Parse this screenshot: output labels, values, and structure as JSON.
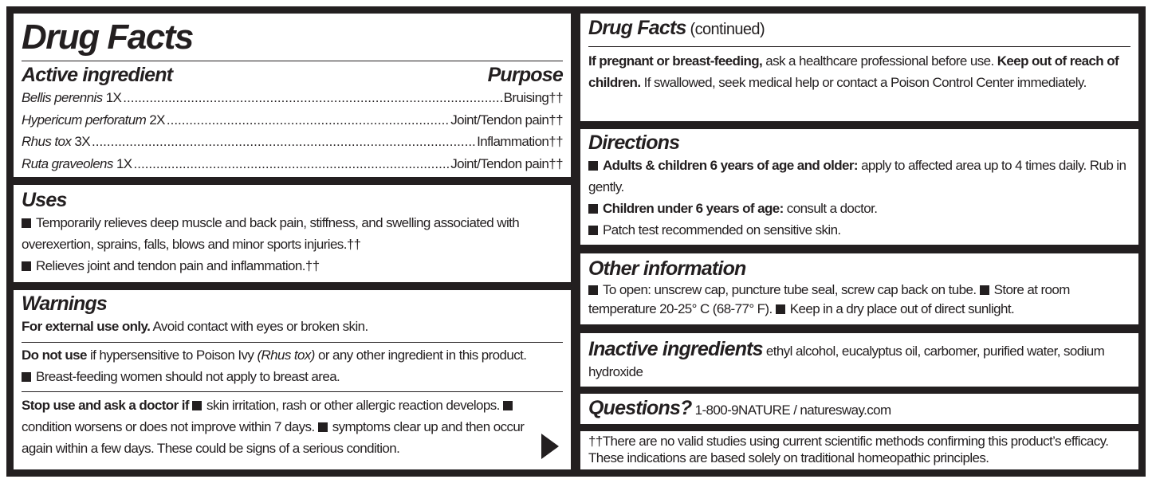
{
  "left": {
    "title": "Drug Facts",
    "active_heading": "Active ingredient",
    "purpose_heading": "Purpose",
    "ingredients": [
      {
        "name": "Bellis perennis",
        "dose": "1X",
        "purpose": "Bruising††"
      },
      {
        "name": "Hypericum perforatum",
        "dose": "2X",
        "purpose": "Joint/Tendon pain††"
      },
      {
        "name": "Rhus tox",
        "dose": "3X",
        "purpose": "Inflammation††"
      },
      {
        "name": "Ruta graveolens",
        "dose": "1X",
        "purpose": "Joint/Tendon pain††"
      }
    ],
    "uses": {
      "heading": "Uses",
      "items": [
        "Temporarily relieves deep muscle and back pain, stiffness, and swelling associated with overexertion, sprains, falls, blows and minor sports injuries.††",
        "Relieves joint and tendon pain and inflammation.††"
      ]
    },
    "warnings": {
      "heading": "Warnings",
      "external_bold": "For external use only.",
      "external_text": " Avoid contact with eyes or broken skin.",
      "donot_bold": "Do not use",
      "donot_text1": " if hypersensitive to Poison Ivy ",
      "donot_italic": "(Rhus tox)",
      "donot_text2": " or any other ingredient in this product.",
      "breast": "Breast-feeding women should not apply to breast area.",
      "stop_bold": "Stop use and ask a doctor if",
      "stop_1": "skin irritation, rash or other allergic reaction develops.",
      "stop_2": "condition worsens or does not improve within 7 days.",
      "stop_3": "symptoms clear up and then occur again within a few days. These could be signs of a serious condition.",
      "continue_icon": "play-arrow-icon"
    }
  },
  "right": {
    "title": "Drug Facts",
    "title_suffix": " (continued)",
    "preg_bold": "If pregnant or breast-feeding,",
    "preg_text": " ask a healthcare professional before use. ",
    "keep_bold": "Keep out of reach of children.",
    "keep_text": " If swallowed, seek medical help or contact a Poison Control Center immediately.",
    "directions": {
      "heading": "Directions",
      "adults_bold": "Adults & children 6 years of age and older:",
      "adults_text": " apply to affected area up to 4 times daily. Rub in gently.",
      "children_bold": "Children under 6 years of age:",
      "children_text": " consult a doctor.",
      "patch": "Patch test recommended on sensitive skin."
    },
    "other": {
      "heading": "Other information",
      "item1": "To open: unscrew cap, puncture tube seal, screw cap back on tube.",
      "item2": "Store at room temperature 20-25° C (68-77° F).",
      "item3": "Keep in a dry place out of direct sunlight."
    },
    "inactive": {
      "heading": "Inactive ingredients",
      "text": " ethyl alcohol, eucalyptus oil, carbomer, purified water, sodium hydroxide"
    },
    "questions": {
      "heading": "Questions?",
      "text": " 1-800-9NATURE / naturesway.com"
    },
    "footnote": "††There are no valid studies using current scientific methods confirming this product’s efficacy. These indications are based solely on traditional homeopathic principles."
  }
}
